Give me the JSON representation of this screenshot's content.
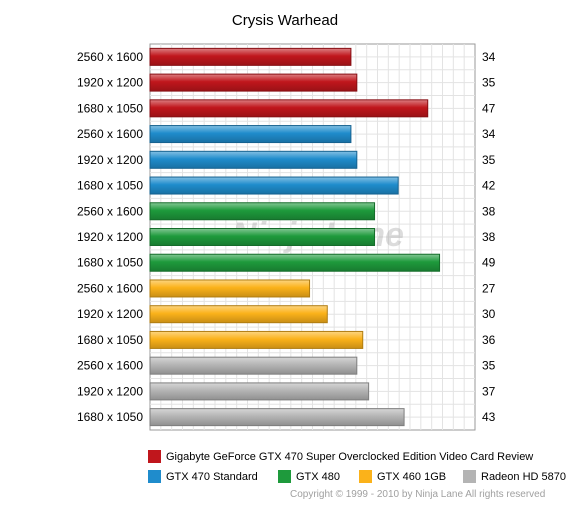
{
  "chart_data": {
    "type": "bar",
    "orientation": "horizontal",
    "title": "Crysis Warhead",
    "xlim": [
      0,
      55
    ],
    "grid": true,
    "legend_placement": "bottom",
    "rows": [
      {
        "label": "2560 x 1600",
        "value": 34,
        "series": "Gigabyte GeForce GTX 470 Super Overclocked Edition Video Card Review"
      },
      {
        "label": "1920 x 1200",
        "value": 35,
        "series": "Gigabyte GeForce GTX 470 Super Overclocked Edition Video Card Review"
      },
      {
        "label": "1680 x 1050",
        "value": 47,
        "series": "Gigabyte GeForce GTX 470 Super Overclocked Edition Video Card Review"
      },
      {
        "label": "2560 x 1600",
        "value": 34,
        "series": "GTX 470 Standard"
      },
      {
        "label": "1920 x 1200",
        "value": 35,
        "series": "GTX 470 Standard"
      },
      {
        "label": "1680 x 1050",
        "value": 42,
        "series": "GTX 470 Standard"
      },
      {
        "label": "2560 x 1600",
        "value": 38,
        "series": "GTX 480"
      },
      {
        "label": "1920 x 1200",
        "value": 38,
        "series": "GTX 480"
      },
      {
        "label": "1680 x 1050",
        "value": 49,
        "series": "GTX 480"
      },
      {
        "label": "2560 x 1600",
        "value": 27,
        "series": "GTX 460 1GB"
      },
      {
        "label": "1920 x 1200",
        "value": 30,
        "series": "GTX 460 1GB"
      },
      {
        "label": "1680 x 1050",
        "value": 36,
        "series": "GTX 460 1GB"
      },
      {
        "label": "2560 x 1600",
        "value": 35,
        "series": "Radeon HD 5870"
      },
      {
        "label": "1920 x 1200",
        "value": 37,
        "series": "Radeon HD 5870"
      },
      {
        "label": "1680 x 1050",
        "value": 43,
        "series": "Radeon HD 5870"
      }
    ],
    "series": [
      {
        "name": "Gigabyte GeForce GTX 470 Super Overclocked Edition Video Card Review",
        "color": "#c0161c"
      },
      {
        "name": "GTX 470 Standard",
        "color": "#1f8ccc"
      },
      {
        "name": "GTX 480",
        "color": "#1e9a3c"
      },
      {
        "name": "GTX 460 1GB",
        "color": "#fbb21a"
      },
      {
        "name": "Radeon HD 5870",
        "color": "#b4b4b4"
      }
    ]
  },
  "watermark": "Ninja Lane",
  "copyright": "Copyright © 1999 - 2010 by Ninja Lane All rights reserved"
}
